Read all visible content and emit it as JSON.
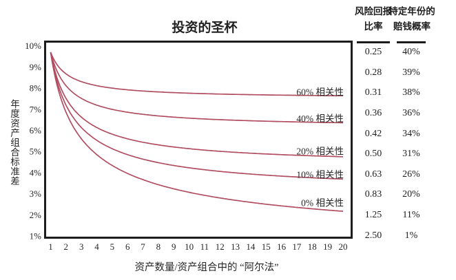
{
  "title": "投资的圣杯",
  "colors": {
    "curve": "#b14d61",
    "ink": "#262626",
    "border": "#1c1c1c",
    "background": "#ffffff"
  },
  "chart_data": {
    "type": "line",
    "title": "投资的圣杯",
    "xlabel": "资产数量/资产组合中的 “阿尔法”",
    "ylabel": "年度资产组合标准差",
    "x": [
      1,
      2,
      3,
      4,
      5,
      6,
      7,
      8,
      9,
      10,
      11,
      12,
      13,
      14,
      15,
      16,
      17,
      18,
      19,
      20
    ],
    "xlim": [
      1,
      20
    ],
    "ylim_percent": [
      1,
      10
    ],
    "ytick_labels": [
      "10%",
      "9%",
      "8%",
      "7%",
      "6%",
      "5%",
      "4%",
      "3%",
      "2%",
      "1%"
    ],
    "ytick_values": [
      10,
      9,
      8,
      7,
      6,
      5,
      4,
      3,
      2,
      1
    ],
    "grid": false,
    "legend_position": "inline-right-of-curves",
    "sigma_single_asset": 9.7,
    "series": [
      {
        "name": "60% 相关性",
        "correlation": 0.6,
        "label_x": 20,
        "label_v": 7.8,
        "values": [
          9.7,
          8.68,
          8.31,
          8.12,
          8.0,
          7.92,
          7.86,
          7.82,
          7.79,
          7.76,
          7.74,
          7.72,
          7.7,
          7.69,
          7.68,
          7.67,
          7.66,
          7.65,
          7.64,
          7.64
        ]
      },
      {
        "name": "40% 相关性",
        "correlation": 0.4,
        "label_x": 20,
        "label_v": 6.55,
        "values": [
          9.7,
          8.12,
          7.51,
          7.19,
          7.0,
          6.86,
          6.76,
          6.69,
          6.63,
          6.58,
          6.54,
          6.51,
          6.48,
          6.46,
          6.43,
          6.42,
          6.4,
          6.39,
          6.37,
          6.36
        ]
      },
      {
        "name": "20% 相关性",
        "correlation": 0.2,
        "label_x": 20,
        "label_v": 5.0,
        "values": [
          9.7,
          7.51,
          6.63,
          6.13,
          5.82,
          5.6,
          5.44,
          5.31,
          5.21,
          5.13,
          5.07,
          5.01,
          4.96,
          4.92,
          4.88,
          4.85,
          4.82,
          4.8,
          4.77,
          4.75
        ]
      },
      {
        "name": "10% 相关性",
        "correlation": 0.1,
        "label_x": 20,
        "label_v": 3.9,
        "values": [
          9.7,
          7.19,
          6.13,
          5.53,
          5.13,
          4.85,
          4.64,
          4.47,
          4.34,
          4.23,
          4.14,
          4.06,
          3.99,
          3.93,
          3.88,
          3.83,
          3.79,
          3.76,
          3.72,
          3.69
        ]
      },
      {
        "name": "0% 相关性",
        "correlation": 0.0,
        "label_x": 20,
        "label_v": 2.57,
        "values": [
          9.7,
          6.86,
          5.6,
          4.85,
          4.34,
          3.96,
          3.67,
          3.43,
          3.23,
          3.07,
          2.92,
          2.8,
          2.69,
          2.59,
          2.5,
          2.43,
          2.35,
          2.29,
          2.23,
          2.17
        ]
      }
    ]
  },
  "side_table": {
    "col1_header_line1": "风险回报",
    "col1_header_line2": "比率",
    "col2_header_line1": "特定年份的",
    "col2_header_line2": "赔钱概率",
    "rows": [
      {
        "ratio": "0.25",
        "loss_probability": "40%"
      },
      {
        "ratio": "0.28",
        "loss_probability": "39%"
      },
      {
        "ratio": "0.31",
        "loss_probability": "38%"
      },
      {
        "ratio": "0.36",
        "loss_probability": "36%"
      },
      {
        "ratio": "0.42",
        "loss_probability": "34%"
      },
      {
        "ratio": "0.50",
        "loss_probability": "31%"
      },
      {
        "ratio": "0.63",
        "loss_probability": "26%"
      },
      {
        "ratio": "0.83",
        "loss_probability": "20%"
      },
      {
        "ratio": "1.25",
        "loss_probability": "11%"
      },
      {
        "ratio": "2.50",
        "loss_probability": "1%"
      }
    ]
  }
}
